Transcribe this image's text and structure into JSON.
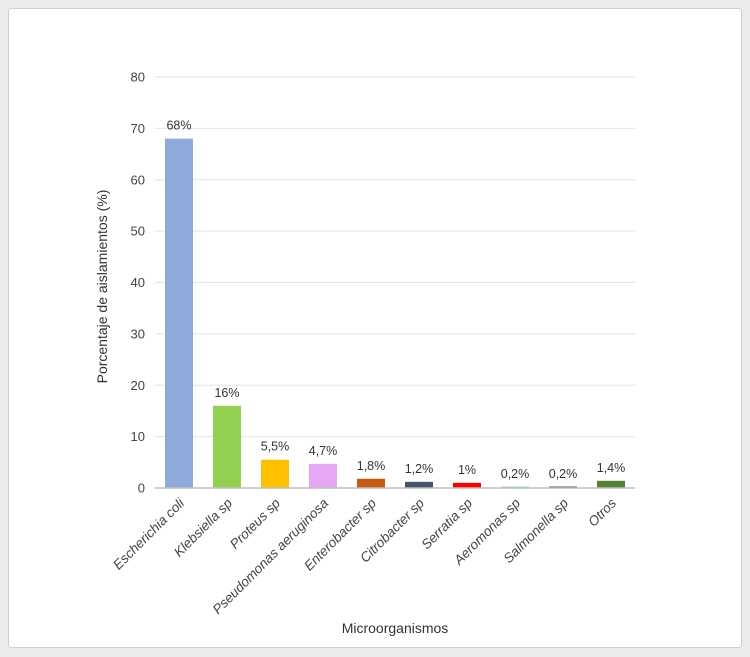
{
  "chart_data": {
    "type": "bar",
    "title": "",
    "xlabel": "Microorganismos",
    "ylabel": "Porcentaje de aislamientos (%)",
    "ylim": [
      0,
      80
    ],
    "yticks": [
      0,
      10,
      20,
      30,
      40,
      50,
      60,
      70,
      80
    ],
    "grid": true,
    "legend": "none",
    "categories": [
      "Escherichia coli",
      "Klebsiella sp",
      "Proteus sp",
      "Pseudomonas aeruginosa",
      "Enterobacter sp",
      "Citrobacter sp",
      "Serratia sp",
      "Aeromonas sp",
      "Salmonella sp",
      "Otros"
    ],
    "values": [
      68,
      16,
      5.5,
      4.7,
      1.8,
      1.2,
      1,
      0.2,
      0.2,
      1.4
    ],
    "data_labels": [
      "68%",
      "16%",
      "5,5%",
      "4,7%",
      "1,8%",
      "1,2%",
      "1%",
      "0,2%",
      "0,2%",
      "1,4%"
    ],
    "colors": [
      "#8eaadb",
      "#92d050",
      "#ffc000",
      "#e6a8f5",
      "#c55a11",
      "#44546a",
      "#ff0000",
      "#9dd9e8",
      "#595959",
      "#548235"
    ]
  }
}
